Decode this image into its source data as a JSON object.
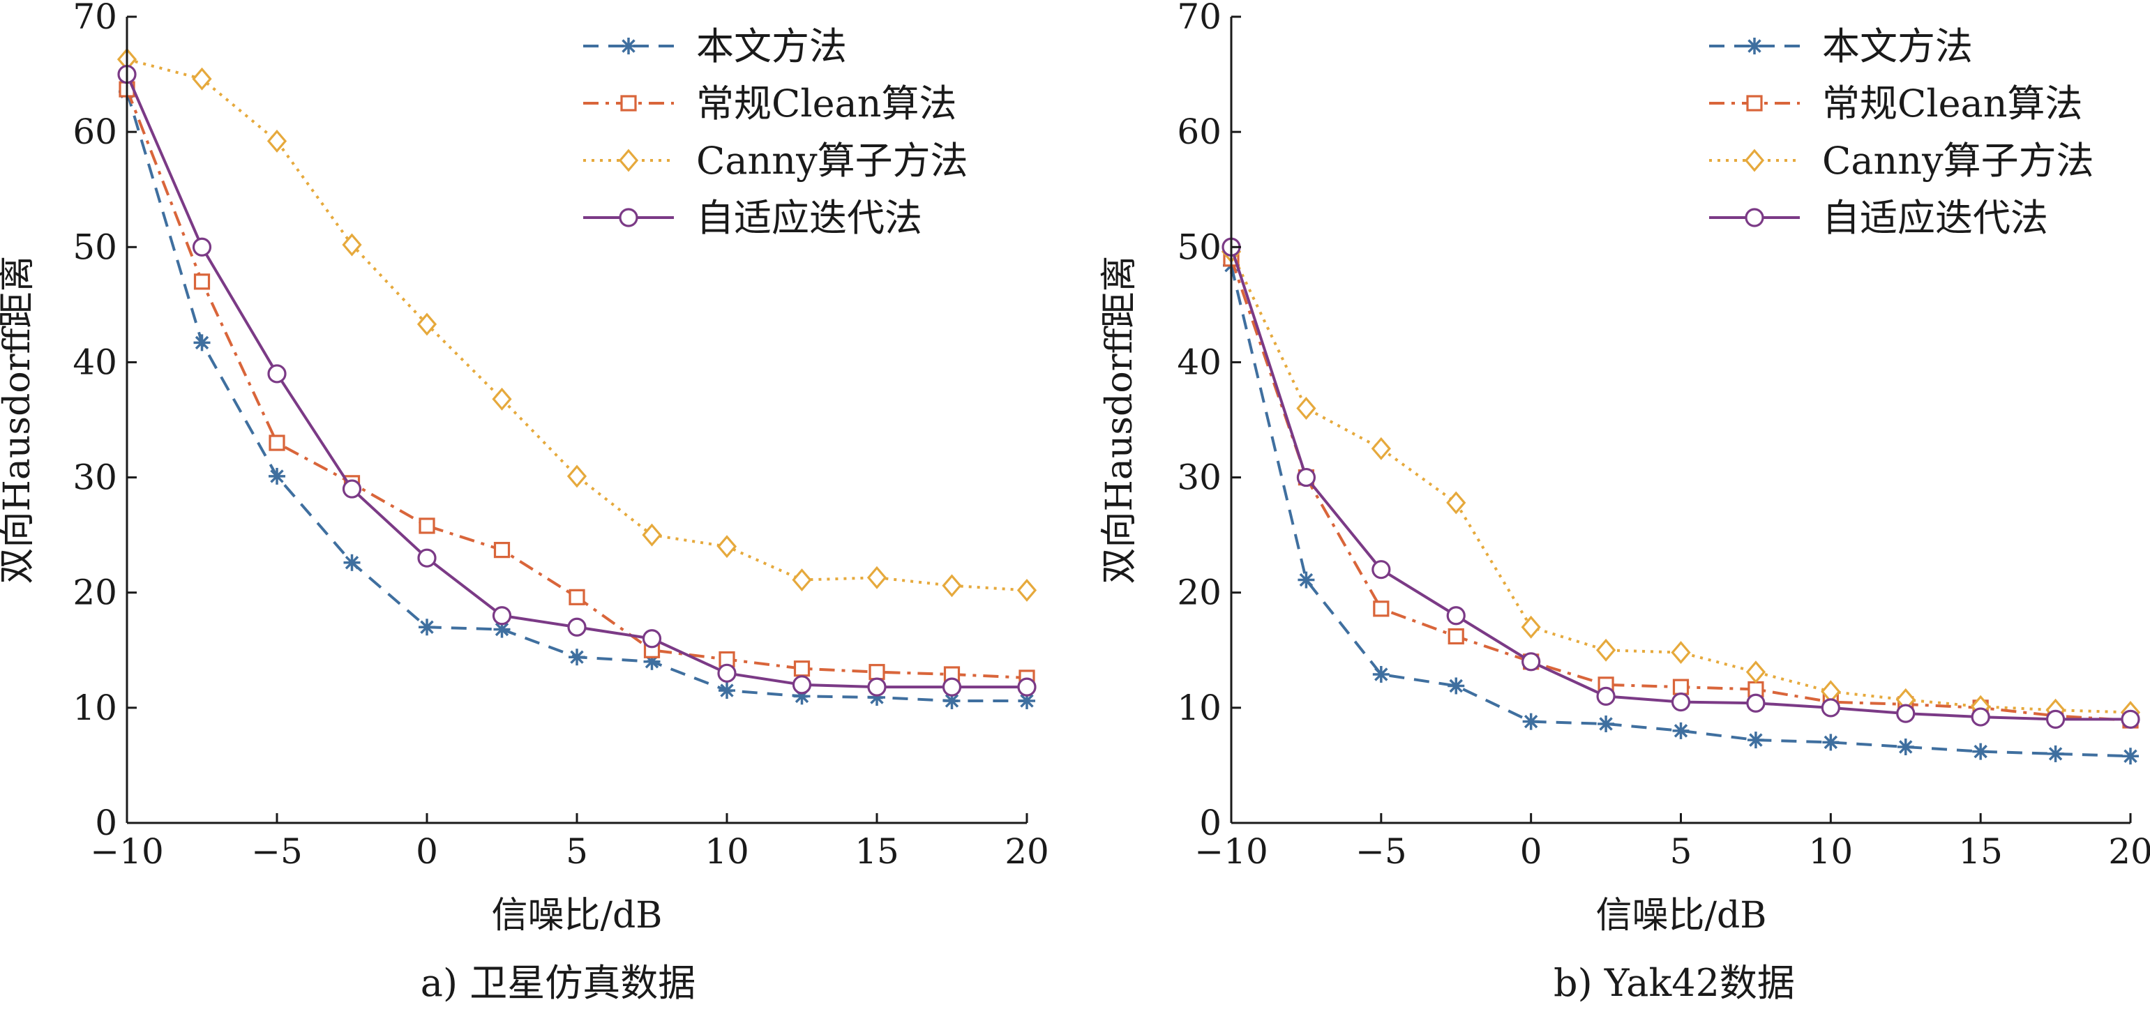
{
  "figure": {
    "panels": [
      {
        "caption": "a) 卫星仿真数据",
        "xlabel": "信噪比/dB",
        "ylabel": "双向Hausdorff距离",
        "x_ticks": [
          -10,
          -5,
          0,
          5,
          10,
          15,
          20
        ],
        "y_ticks": [
          0,
          10,
          20,
          30,
          40,
          50,
          60,
          70
        ]
      },
      {
        "caption": "b) Yak42数据",
        "xlabel": "信噪比/dB",
        "ylabel": "双向Hausdorff距离",
        "x_ticks": [
          -10,
          -5,
          0,
          5,
          10,
          15,
          20
        ],
        "y_ticks": [
          0,
          10,
          20,
          30,
          40,
          50,
          60,
          70
        ]
      }
    ]
  },
  "chart_data": [
    {
      "type": "line",
      "title": "",
      "caption": "a) 卫星仿真数据",
      "xlabel": "信噪比/dB",
      "ylabel": "双向Hausdorff距离",
      "xlim": [
        -10,
        20
      ],
      "ylim": [
        0,
        70
      ],
      "grid": false,
      "legend_position": "top-right",
      "x": [
        -10,
        -7.5,
        -5,
        -2.5,
        0,
        2.5,
        5,
        7.5,
        10,
        12.5,
        15,
        17.5,
        20
      ],
      "series": [
        {
          "name": "本文方法",
          "color": "#3f6f9f",
          "marker": "asterisk",
          "line": "dashed",
          "values": [
            63.5,
            41.7,
            30.1,
            22.6,
            17.0,
            16.8,
            14.4,
            14.0,
            11.5,
            11.0,
            10.9,
            10.6,
            10.6
          ]
        },
        {
          "name": "常规Clean算法",
          "color": "#d9653a",
          "marker": "square",
          "line": "dashdot",
          "values": [
            63.7,
            47.0,
            33.0,
            29.5,
            25.8,
            23.7,
            19.6,
            15.0,
            14.2,
            13.4,
            13.1,
            12.9,
            12.6
          ]
        },
        {
          "name": "Canny算子方法",
          "color": "#e6a93c",
          "marker": "diamond",
          "line": "dotted",
          "values": [
            66.3,
            64.6,
            59.2,
            50.2,
            43.3,
            36.8,
            30.1,
            25.0,
            24.0,
            21.1,
            21.3,
            20.6,
            20.2
          ]
        },
        {
          "name": "自适应迭代法",
          "color": "#7b3a86",
          "marker": "circle",
          "line": "solid",
          "values": [
            65.0,
            50.0,
            39.0,
            29.0,
            23.0,
            18.0,
            17.0,
            16.0,
            13.0,
            12.0,
            11.8,
            11.8,
            11.8
          ]
        }
      ]
    },
    {
      "type": "line",
      "title": "",
      "caption": "b) Yak42数据",
      "xlabel": "信噪比/dB",
      "ylabel": "双向Hausdorff距离",
      "xlim": [
        -10,
        20
      ],
      "ylim": [
        0,
        70
      ],
      "grid": false,
      "legend_position": "top-right",
      "x": [
        -10,
        -7.5,
        -5,
        -2.5,
        0,
        2.5,
        5,
        7.5,
        10,
        12.5,
        15,
        17.5,
        20
      ],
      "series": [
        {
          "name": "本文方法",
          "color": "#3f6f9f",
          "marker": "asterisk",
          "line": "dashed",
          "values": [
            48.4,
            21.1,
            12.9,
            11.9,
            8.8,
            8.6,
            8.0,
            7.2,
            7.0,
            6.6,
            6.2,
            6.0,
            5.8
          ]
        },
        {
          "name": "常规Clean算法",
          "color": "#d9653a",
          "marker": "square",
          "line": "dashdot",
          "values": [
            49.0,
            30.0,
            18.6,
            16.2,
            14.0,
            12.0,
            11.8,
            11.6,
            10.5,
            10.3,
            10.0,
            9.3,
            8.9
          ]
        },
        {
          "name": "Canny算子方法",
          "color": "#e6a93c",
          "marker": "diamond",
          "line": "dotted",
          "values": [
            49.6,
            36.0,
            32.5,
            27.8,
            17.0,
            15.0,
            14.8,
            13.1,
            11.4,
            10.7,
            10.1,
            9.8,
            9.6
          ]
        },
        {
          "name": "自适应迭代法",
          "color": "#7b3a86",
          "marker": "circle",
          "line": "solid",
          "values": [
            50.0,
            30.0,
            22.0,
            18.0,
            14.0,
            11.0,
            10.5,
            10.4,
            10.0,
            9.5,
            9.2,
            9.0,
            9.0
          ]
        }
      ]
    }
  ]
}
